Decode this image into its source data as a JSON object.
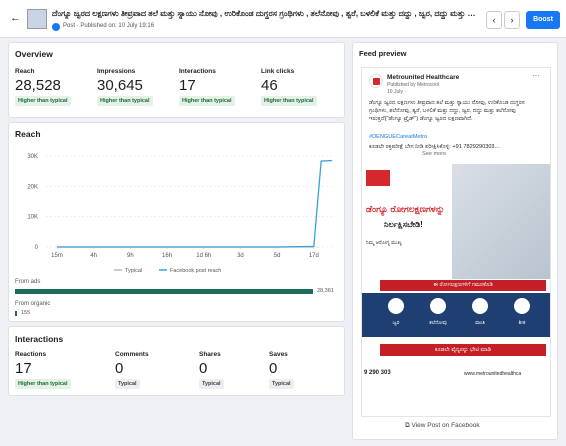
{
  "header": {
    "title": "ದೆಂಗ್ಯೂ ಜ್ವರದ ಲಕ್ಷಣಗಳು ತೀವ್ರವಾದ ತಲೆ ಮತ್ತು ಸ್ನಾಯು ನೋವು , ಉರಿಕೊಂಡ ದುಗ್ಧರಸ ಗ್ರಂಥಿಗಳು , ತಲೆನೋವು , ತ್ವರೆ, ಬಳಲಿಕೆ ಮತ್ತು ದದ್ದು , ಜ್ವರ, ದದ್ದು ಮತ್ತು ತಲೆ...",
    "subtitle": "Post · Published on: 10 July 19:16",
    "button": "Boost"
  },
  "overview": {
    "title": "Overview",
    "metrics": [
      {
        "label": "Reach",
        "value": "28,528",
        "badge": "Higher than typical"
      },
      {
        "label": "Impressions",
        "value": "30,645",
        "badge": "Higher than typical"
      },
      {
        "label": "Interactions",
        "value": "17",
        "badge": "Higher than typical"
      },
      {
        "label": "Link clicks",
        "value": "46",
        "badge": "Higher than typical"
      }
    ]
  },
  "reach": {
    "title": "Reach",
    "chart": {
      "type": "line",
      "x": [
        0,
        1,
        2,
        3,
        4,
        5,
        6,
        7,
        7.2,
        7.5
      ],
      "xlim": [
        -0.3,
        7.55
      ],
      "xticks": [
        {
          "value": 0,
          "label": "15m"
        },
        {
          "value": 1,
          "label": "4h"
        },
        {
          "value": 2,
          "label": "9h"
        },
        {
          "value": 3,
          "label": "16h"
        },
        {
          "value": 4,
          "label": "1d 6h"
        },
        {
          "value": 5,
          "label": "3d"
        },
        {
          "value": 6,
          "label": "5d"
        },
        {
          "value": 7,
          "label": "17d"
        }
      ],
      "ylim": [
        0,
        30000
      ],
      "yticks": [
        0,
        {
          "value": 10000,
          "label": "10K"
        },
        {
          "value": 20000,
          "label": "20K"
        },
        {
          "value": 30000,
          "label": "30K"
        }
      ],
      "grid": true,
      "series": [
        {
          "name": "Typical",
          "color": "#b8bcc2",
          "values": [
            0,
            0,
            0,
            0,
            0,
            0,
            0,
            0,
            null,
            null
          ]
        },
        {
          "name": "Facebook post reach",
          "color": "#3aa0d8",
          "values": [
            0,
            0,
            0,
            0,
            0,
            0,
            0,
            200,
            28300,
            28528
          ]
        }
      ]
    },
    "from_ads": {
      "label": "From ads",
      "value": "28,361"
    },
    "from_organic": {
      "label": "From organic",
      "value": "155"
    }
  },
  "interactions": {
    "title": "Interactions",
    "metrics": [
      {
        "label": "Reactions",
        "value": "17",
        "badge": "Higher than typical"
      },
      {
        "label": "Comments",
        "value": "0",
        "badge": "Typical"
      },
      {
        "label": "Shares",
        "value": "0",
        "badge": "Typical"
      },
      {
        "label": "Saves",
        "value": "0",
        "badge": "Typical"
      }
    ]
  },
  "feed": {
    "title": "Feed preview",
    "page": "Metrounited Healthcare",
    "published_by": "Published by Metrocool",
    "date": "10 July ·",
    "text": "ಡೆಂಗ್ಯೂ ಜ್ವರದ ಲಕ್ಷಣಗಳು ತೀವ್ರವಾದ ತಲೆ ಮತ್ತು ಸ್ನಾಯು ನೋವು, ಉರಿಕೊಂಡ ದುಗ್ಧರಸ ಗ್ರಂಥಿಗಳು, ತಲೆನೋವು, ತ್ವರೆ, ಬಳಲಿಕೆ ಮತ್ತು ದದ್ದು, ಜ್ವರ, ದದ್ದು ಮತ್ತು ತಲೆನೋವು ಇರುತ್ತದೆ(\"ಡೆಂಗ್ಯೂ ಟ್ರೈಡ್\") ಡೆಂಗ್ಯೂ ಜ್ವರದ ಲಕ್ಷಣವಾಗಿದೆ.",
    "hashtag": "#DENGUECareatMetro",
    "phone": "ಕೂಡಲೇ ರಕ್ತಪರೀಕ್ಷೆ ಬೇಗ ನೀಡಿ ಪರೀಕ್ಷಿಸಿಕೊಳ್ಳಿ: +91 7829290303...",
    "see_more": "See more",
    "image": {
      "headline1": "ಡೆಂಗ್ಯೂ ರೋಗಲಕ್ಷಣಗಳನ್ನು",
      "headline2": "ನಿರ್ಲಕ್ಷಿಸಬೇಡಿ!",
      "sub": "ನಿಮ್ಮ ಆರೋಗ್ಯ ಮುಖ್ಯ",
      "banner": "ಈ ರೋಗಲಕ್ಷಣಗಳಿಗೆ ಗಮನಕೊಡಿ",
      "icons": [
        "ಜ್ವರ",
        "ತಲೆನೋವು",
        "ವಾಂತಿ",
        "ಶೀತ"
      ],
      "cta": "ಕೂಡಲೇ ವೈದ್ಯರನ್ನು ಭೇಟಿ ಮಾಡಿ",
      "phone": "9 290 303",
      "site": "www.metrounitedhealthca"
    },
    "link": "View Post on Facebook"
  }
}
